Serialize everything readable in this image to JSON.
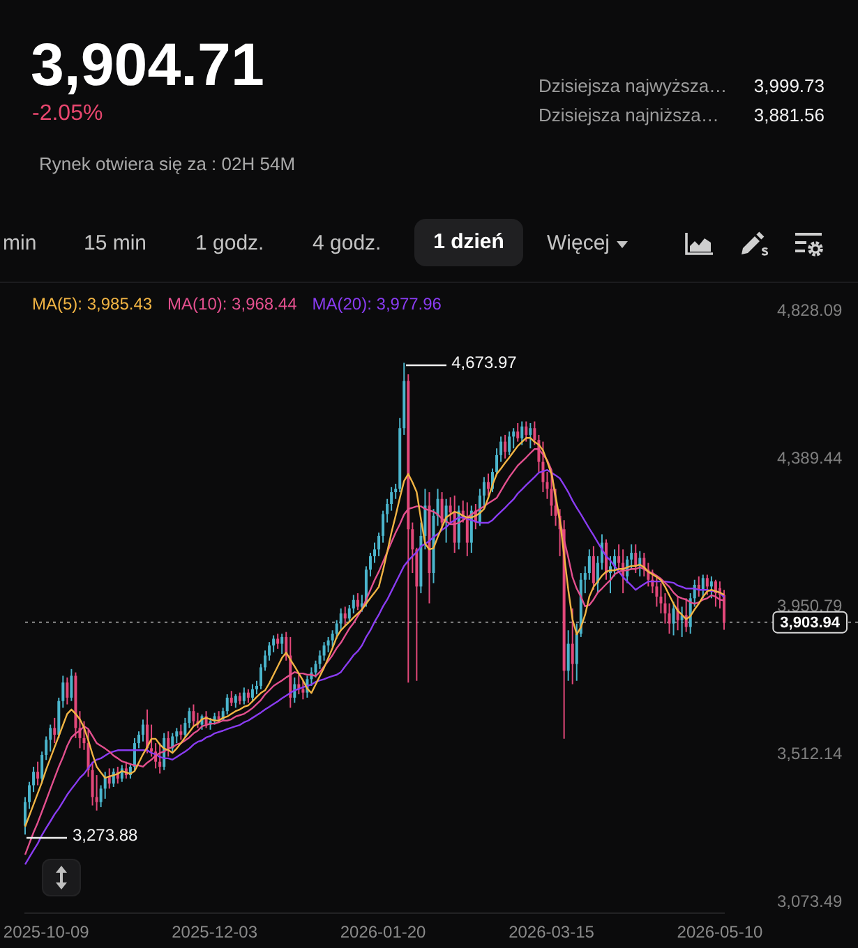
{
  "chart_data": {
    "type": "candlestick",
    "title": "3,904.71",
    "subtitle": "-2.05%",
    "categories": [
      null,
      null,
      null,
      null,
      null,
      "2025-10-09",
      null,
      null,
      null,
      null,
      null,
      null,
      null,
      null,
      null,
      null,
      null,
      null,
      null,
      null,
      null,
      null,
      null,
      null,
      null,
      null,
      null,
      null,
      null,
      null,
      null,
      null,
      null,
      null,
      null,
      null,
      null,
      null,
      null,
      null,
      null,
      null,
      null,
      null,
      null,
      "2025-12-03",
      null,
      null,
      null,
      null,
      null,
      null,
      null,
      null,
      null,
      null,
      null,
      null,
      null,
      null,
      null,
      null,
      null,
      null,
      null,
      null,
      null,
      null,
      null,
      null,
      null,
      null,
      null,
      null,
      null,
      null,
      null,
      null,
      null,
      null,
      null,
      null,
      null,
      null,
      null,
      "2026-01-20",
      null,
      null,
      null,
      null,
      null,
      null,
      null,
      null,
      null,
      null,
      null,
      null,
      null,
      null,
      null,
      null,
      null,
      null,
      null,
      null,
      null,
      null,
      null,
      null,
      null,
      null,
      null,
      null,
      null,
      null,
      null,
      null,
      null,
      null,
      null,
      null,
      null,
      null,
      null,
      "2026-03-15",
      null,
      null,
      null,
      null,
      null,
      null,
      null,
      null,
      null,
      null,
      null,
      null,
      null,
      null,
      null,
      null,
      null,
      null,
      null,
      null,
      null,
      null,
      null,
      null,
      null,
      null,
      null,
      null,
      null,
      null,
      null,
      null,
      null,
      null,
      null,
      null,
      null,
      null,
      null,
      "2026-05-10",
      null
    ],
    "ohlc": [
      [
        3300,
        3385,
        3273.88,
        3370
      ],
      [
        3370,
        3430,
        3350,
        3420
      ],
      [
        3420,
        3475,
        3400,
        3460
      ],
      [
        3460,
        3490,
        3420,
        3440
      ],
      [
        3440,
        3520,
        3425,
        3510
      ],
      [
        3510,
        3565,
        3495,
        3555
      ],
      [
        3555,
        3600,
        3520,
        3590
      ],
      [
        3590,
        3620,
        3545,
        3570
      ],
      [
        3570,
        3680,
        3560,
        3670
      ],
      [
        3670,
        3745,
        3650,
        3725
      ],
      [
        3725,
        3740,
        3660,
        3680
      ],
      [
        3680,
        3765,
        3670,
        3745
      ],
      [
        3745,
        3755,
        3560,
        3590
      ],
      [
        3590,
        3640,
        3530,
        3560
      ],
      [
        3560,
        3610,
        3525,
        3545
      ],
      [
        3545,
        3585,
        3445,
        3465
      ],
      [
        3465,
        3490,
        3360,
        3385
      ],
      [
        3385,
        3450,
        3345,
        3370
      ],
      [
        3370,
        3420,
        3355,
        3410
      ],
      [
        3410,
        3460,
        3380,
        3445
      ],
      [
        3445,
        3470,
        3410,
        3425
      ],
      [
        3425,
        3470,
        3415,
        3460
      ],
      [
        3460,
        3475,
        3425,
        3440
      ],
      [
        3440,
        3480,
        3430,
        3470
      ],
      [
        3470,
        3490,
        3440,
        3450
      ],
      [
        3450,
        3485,
        3440,
        3475
      ],
      [
        3475,
        3560,
        3460,
        3545
      ],
      [
        3545,
        3580,
        3530,
        3570
      ],
      [
        3570,
        3615,
        3550,
        3600
      ],
      [
        3600,
        3645,
        3515,
        3530
      ],
      [
        3530,
        3600,
        3505,
        3520
      ],
      [
        3520,
        3545,
        3470,
        3490
      ],
      [
        3490,
        3545,
        3455,
        3475
      ],
      [
        3475,
        3575,
        3465,
        3560
      ],
      [
        3560,
        3580,
        3505,
        3530
      ],
      [
        3530,
        3575,
        3520,
        3565
      ],
      [
        3565,
        3590,
        3545,
        3580
      ],
      [
        3580,
        3600,
        3555,
        3570
      ],
      [
        3570,
        3620,
        3560,
        3605
      ],
      [
        3605,
        3650,
        3590,
        3640
      ],
      [
        3640,
        3660,
        3595,
        3610
      ],
      [
        3610,
        3635,
        3590,
        3600
      ],
      [
        3600,
        3630,
        3585,
        3625
      ],
      [
        3625,
        3640,
        3590,
        3600
      ],
      [
        3600,
        3620,
        3585,
        3610
      ],
      [
        3610,
        3635,
        3600,
        3625
      ],
      [
        3625,
        3640,
        3605,
        3615
      ],
      [
        3615,
        3650,
        3610,
        3640
      ],
      [
        3640,
        3690,
        3630,
        3680
      ],
      [
        3680,
        3700,
        3655,
        3665
      ],
      [
        3665,
        3690,
        3650,
        3685
      ],
      [
        3685,
        3695,
        3660,
        3670
      ],
      [
        3670,
        3710,
        3660,
        3695
      ],
      [
        3695,
        3705,
        3665,
        3680
      ],
      [
        3680,
        3720,
        3670,
        3705
      ],
      [
        3705,
        3730,
        3690,
        3715
      ],
      [
        3715,
        3780,
        3705,
        3770
      ],
      [
        3770,
        3820,
        3760,
        3805
      ],
      [
        3805,
        3845,
        3790,
        3835
      ],
      [
        3835,
        3865,
        3815,
        3855
      ],
      [
        3855,
        3870,
        3825,
        3840
      ],
      [
        3840,
        3870,
        3810,
        3860
      ],
      [
        3860,
        3875,
        3790,
        3805
      ],
      [
        3805,
        3860,
        3650,
        3680
      ],
      [
        3680,
        3740,
        3665,
        3720
      ],
      [
        3720,
        3750,
        3690,
        3705
      ],
      [
        3705,
        3730,
        3675,
        3695
      ],
      [
        3695,
        3745,
        3680,
        3735
      ],
      [
        3735,
        3770,
        3715,
        3755
      ],
      [
        3755,
        3790,
        3740,
        3780
      ],
      [
        3780,
        3820,
        3765,
        3805
      ],
      [
        3805,
        3845,
        3790,
        3835
      ],
      [
        3835,
        3860,
        3815,
        3850
      ],
      [
        3850,
        3880,
        3830,
        3870
      ],
      [
        3870,
        3910,
        3855,
        3900
      ],
      [
        3900,
        3945,
        3880,
        3930
      ],
      [
        3930,
        3950,
        3895,
        3915
      ],
      [
        3915,
        3955,
        3905,
        3945
      ],
      [
        3945,
        3985,
        3930,
        3970
      ],
      [
        3970,
        3990,
        3940,
        3950
      ],
      [
        3950,
        3985,
        3935,
        3960
      ],
      [
        3960,
        4070,
        3950,
        4060
      ],
      [
        4060,
        4110,
        4040,
        4100
      ],
      [
        4100,
        4140,
        4080,
        4120
      ],
      [
        4120,
        4170,
        4100,
        4160
      ],
      [
        4160,
        4235,
        4140,
        4225
      ],
      [
        4225,
        4270,
        4200,
        4255
      ],
      [
        4255,
        4305,
        4235,
        4290
      ],
      [
        4290,
        4315,
        4270,
        4300
      ],
      [
        4300,
        4510,
        4290,
        4480
      ],
      [
        4480,
        4673.97,
        4460,
        4620
      ],
      [
        4620,
        4640,
        3725,
        4180
      ],
      [
        4180,
        4200,
        4050,
        4120
      ],
      [
        4120,
        4125,
        3730,
        4010
      ],
      [
        4010,
        4200,
        3990,
        4160
      ],
      [
        4160,
        4300,
        4120,
        4250
      ],
      [
        4250,
        4290,
        3960,
        4050
      ],
      [
        4050,
        4240,
        4020,
        4220
      ],
      [
        4220,
        4300,
        4190,
        4270
      ],
      [
        4270,
        4290,
        4180,
        4200
      ],
      [
        4200,
        4270,
        4140,
        4250
      ],
      [
        4250,
        4275,
        4200,
        4230
      ],
      [
        4230,
        4280,
        4110,
        4140
      ],
      [
        4140,
        4250,
        4120,
        4235
      ],
      [
        4235,
        4265,
        4200,
        4215
      ],
      [
        4215,
        4260,
        4100,
        4140
      ],
      [
        4140,
        4250,
        4110,
        4235
      ],
      [
        4235,
        4255,
        4180,
        4200
      ],
      [
        4200,
        4300,
        4190,
        4280
      ],
      [
        4280,
        4335,
        4240,
        4320
      ],
      [
        4320,
        4345,
        4280,
        4300
      ],
      [
        4300,
        4360,
        4290,
        4350
      ],
      [
        4350,
        4420,
        4340,
        4400
      ],
      [
        4400,
        4455,
        4380,
        4440
      ],
      [
        4440,
        4460,
        4390,
        4410
      ],
      [
        4410,
        4470,
        4400,
        4455
      ],
      [
        4455,
        4480,
        4420,
        4470
      ],
      [
        4470,
        4495,
        4440,
        4450
      ],
      [
        4450,
        4500,
        4430,
        4485
      ],
      [
        4485,
        4500,
        4440,
        4460
      ],
      [
        4460,
        4495,
        4420,
        4480
      ],
      [
        4480,
        4500,
        4430,
        4445
      ],
      [
        4445,
        4460,
        4350,
        4380
      ],
      [
        4380,
        4440,
        4290,
        4320
      ],
      [
        4320,
        4350,
        4270,
        4300
      ],
      [
        4300,
        4345,
        4220,
        4250
      ],
      [
        4250,
        4300,
        4190,
        4220
      ],
      [
        4220,
        4240,
        4100,
        4180
      ],
      [
        4180,
        4207,
        3558,
        3760
      ],
      [
        3760,
        3880,
        3730,
        3840
      ],
      [
        3840,
        3945,
        3720,
        3780
      ],
      [
        3780,
        3900,
        3730,
        3870
      ],
      [
        3870,
        4050,
        3860,
        4030
      ],
      [
        4030,
        4070,
        3990,
        4050
      ],
      [
        4050,
        4120,
        4030,
        4100
      ],
      [
        4100,
        4130,
        4000,
        4020
      ],
      [
        4020,
        4100,
        3990,
        4080
      ],
      [
        4080,
        4165,
        4060,
        4140
      ],
      [
        4140,
        4150,
        4030,
        4050
      ],
      [
        4050,
        4100,
        3990,
        4070
      ],
      [
        4070,
        4120,
        4040,
        4100
      ],
      [
        4100,
        4135,
        4060,
        4080
      ],
      [
        4080,
        4120,
        3990,
        4040
      ],
      [
        4040,
        4100,
        4020,
        4090
      ],
      [
        4090,
        4135,
        4060,
        4110
      ],
      [
        4110,
        4135,
        4050,
        4070
      ],
      [
        4070,
        4115,
        4040,
        4095
      ],
      [
        4095,
        4110,
        4040,
        4060
      ],
      [
        4060,
        4080,
        4010,
        4030
      ],
      [
        4030,
        4060,
        3990,
        4010
      ],
      [
        4010,
        4040,
        3950,
        3980
      ],
      [
        3980,
        4020,
        3930,
        3960
      ],
      [
        3960,
        3990,
        3900,
        3930
      ],
      [
        3930,
        3960,
        3870,
        3900
      ],
      [
        3900,
        3965,
        3865,
        3945
      ],
      [
        3945,
        3980,
        3880,
        3910
      ],
      [
        3910,
        3950,
        3860,
        3925
      ],
      [
        3925,
        3975,
        3875,
        3890
      ],
      [
        3890,
        3990,
        3870,
        3975
      ],
      [
        3975,
        4030,
        3950,
        4015
      ],
      [
        4015,
        4040,
        3980,
        4000
      ],
      [
        4000,
        4045,
        3975,
        4035
      ],
      [
        4035,
        4045,
        3985,
        4010
      ],
      [
        4010,
        4040,
        3975,
        4025
      ],
      [
        4025,
        4030,
        3950,
        3990
      ],
      [
        4005,
        4025,
        3945,
        3985
      ],
      [
        3985,
        3999.73,
        3881.56,
        3903.94
      ]
    ],
    "colors": [
      "#4bb5cc",
      "#4bb5cc",
      "#4bb5cc",
      "#e3487a",
      "#4bb5cc",
      "#4bb5cc",
      "#4bb5cc",
      "#e3487a",
      "#4bb5cc",
      "#4bb5cc",
      "#e3487a",
      "#4bb5cc",
      "#e3487a",
      "#e3487a",
      "#e3487a",
      "#e3487a",
      "#e3487a",
      "#e3487a",
      "#4bb5cc",
      "#4bb5cc",
      "#e3487a",
      "#4bb5cc",
      "#e3487a",
      "#4bb5cc",
      "#e3487a",
      "#4bb5cc",
      "#4bb5cc",
      "#4bb5cc",
      "#4bb5cc",
      "#e3487a",
      "#e3487a",
      "#e3487a",
      "#e3487a",
      "#4bb5cc",
      "#e3487a",
      "#4bb5cc",
      "#4bb5cc",
      "#e3487a",
      "#4bb5cc",
      "#4bb5cc",
      "#e3487a",
      "#e3487a",
      "#4bb5cc",
      "#e3487a",
      "#4bb5cc",
      "#4bb5cc",
      "#e3487a",
      "#4bb5cc",
      "#4bb5cc",
      "#e3487a",
      "#4bb5cc",
      "#e3487a",
      "#4bb5cc",
      "#e3487a",
      "#4bb5cc",
      "#4bb5cc",
      "#4bb5cc",
      "#4bb5cc",
      "#4bb5cc",
      "#4bb5cc",
      "#e3487a",
      "#4bb5cc",
      "#e3487a",
      "#e3487a",
      "#4bb5cc",
      "#e3487a",
      "#e3487a",
      "#4bb5cc",
      "#4bb5cc",
      "#4bb5cc",
      "#4bb5cc",
      "#4bb5cc",
      "#4bb5cc",
      "#4bb5cc",
      "#4bb5cc",
      "#4bb5cc",
      "#e3487a",
      "#4bb5cc",
      "#4bb5cc",
      "#e3487a",
      "#4bb5cc",
      "#4bb5cc",
      "#4bb5cc",
      "#4bb5cc",
      "#4bb5cc",
      "#4bb5cc",
      "#4bb5cc",
      "#4bb5cc",
      "#4bb5cc",
      "#4bb5cc",
      "#4bb5cc",
      "#e3487a",
      "#e3487a",
      "#e3487a",
      "#4bb5cc",
      "#4bb5cc",
      "#e3487a",
      "#4bb5cc",
      "#4bb5cc",
      "#e3487a",
      "#4bb5cc",
      "#e3487a",
      "#e3487a",
      "#4bb5cc",
      "#e3487a",
      "#e3487a",
      "#4bb5cc",
      "#e3487a",
      "#4bb5cc",
      "#4bb5cc",
      "#e3487a",
      "#4bb5cc",
      "#4bb5cc",
      "#4bb5cc",
      "#e3487a",
      "#4bb5cc",
      "#4bb5cc",
      "#e3487a",
      "#4bb5cc",
      "#e3487a",
      "#4bb5cc",
      "#e3487a",
      "#e3487a",
      "#e3487a",
      "#e3487a",
      "#e3487a",
      "#e3487a",
      "#e3487a",
      "#e3487a",
      "#4bb5cc",
      "#e3487a",
      "#4bb5cc",
      "#4bb5cc",
      "#4bb5cc",
      "#4bb5cc",
      "#e3487a",
      "#4bb5cc",
      "#4bb5cc",
      "#e3487a",
      "#4bb5cc",
      "#4bb5cc",
      "#e3487a",
      "#e3487a",
      "#4bb5cc",
      "#4bb5cc",
      "#e3487a",
      "#4bb5cc",
      "#e3487a",
      "#e3487a",
      "#e3487a",
      "#e3487a",
      "#e3487a",
      "#e3487a",
      "#e3487a",
      "#4bb5cc",
      "#e3487a",
      "#4bb5cc",
      "#e3487a",
      "#4bb5cc",
      "#4bb5cc",
      "#e3487a",
      "#4bb5cc",
      "#e3487a",
      "#4bb5cc",
      "#e3487a",
      "#e3487a",
      "#e3487a"
    ],
    "series": [
      {
        "type": "line",
        "name": "MA(5): 3,985.43",
        "color": "#f2b544",
        "values": [
          3297,
          3330,
          3363,
          3396,
          3429,
          3467,
          3500,
          3533,
          3566,
          3599,
          3632,
          3645,
          3632,
          3616,
          3591,
          3554,
          3512,
          3475,
          3458,
          3442,
          3446,
          3450,
          3454,
          3462,
          3458,
          3454,
          3462,
          3487,
          3512,
          3533,
          3558,
          3558,
          3541,
          3529,
          3525,
          3516,
          3529,
          3545,
          3562,
          3578,
          3595,
          3603,
          3616,
          3620,
          3616,
          3612,
          3612,
          3620,
          3624,
          3632,
          3640,
          3645,
          3653,
          3657,
          3669,
          3682,
          3694,
          3702,
          3723,
          3748,
          3773,
          3798,
          3814,
          3793,
          3773,
          3752,
          3731,
          3707,
          3694,
          3719,
          3744,
          3769,
          3798,
          3827,
          3860,
          3880,
          3893,
          3905,
          3918,
          3930,
          3942,
          3959,
          3976,
          3992,
          4009,
          4058,
          4112,
          4170,
          4220,
          4273,
          4323,
          4344,
          4319,
          4290,
          4211,
          4137,
          4120,
          4124,
          4157,
          4186,
          4215,
          4224,
          4232,
          4228,
          4220,
          4215,
          4215,
          4220,
          4228,
          4240,
          4273,
          4311,
          4344,
          4360,
          4377,
          4393,
          4410,
          4427,
          4439,
          4451,
          4451,
          4439,
          4431,
          4414,
          4381,
          4344,
          4278,
          4207,
          4104,
          4000,
          3913,
          3868,
          3889,
          3926,
          3980,
          4009,
          4025,
          4042,
          4054,
          4058,
          4058,
          4062,
          4062,
          4067,
          4071,
          4071,
          4075,
          4067,
          4054,
          4046,
          4038,
          4029,
          4009,
          3984,
          3959,
          3938,
          3926,
          3913,
          3922,
          3942,
          3959,
          3980,
          3996,
          4000,
          3996,
          3992,
          3985.43
        ]
      },
      {
        "type": "line",
        "name": "MA(10): 3,968.44",
        "color": "#e4508f",
        "values": [
          3214,
          3247,
          3280,
          3309,
          3342,
          3375,
          3409,
          3442,
          3475,
          3504,
          3537,
          3562,
          3574,
          3582,
          3595,
          3587,
          3566,
          3545,
          3537,
          3529,
          3520,
          3508,
          3500,
          3491,
          3487,
          3483,
          3479,
          3479,
          3475,
          3487,
          3496,
          3508,
          3516,
          3520,
          3529,
          3533,
          3541,
          3545,
          3553,
          3562,
          3574,
          3582,
          3595,
          3599,
          3603,
          3603,
          3607,
          3612,
          3612,
          3616,
          3624,
          3628,
          3632,
          3640,
          3649,
          3661,
          3673,
          3690,
          3702,
          3715,
          3723,
          3731,
          3740,
          3748,
          3756,
          3752,
          3752,
          3748,
          3748,
          3744,
          3756,
          3773,
          3789,
          3806,
          3827,
          3843,
          3864,
          3885,
          3901,
          3922,
          3942,
          3971,
          4000,
          4029,
          4054,
          4083,
          4112,
          4141,
          4170,
          4195,
          4224,
          4240,
          4244,
          4248,
          4248,
          4240,
          4236,
          4232,
          4224,
          4211,
          4203,
          4195,
          4195,
          4199,
          4207,
          4215,
          4224,
          4232,
          4240,
          4248,
          4257,
          4265,
          4273,
          4294,
          4315,
          4335,
          4352,
          4369,
          4381,
          4393,
          4406,
          4418,
          4418,
          4402,
          4385,
          4356,
          4265,
          4207,
          4149,
          4096,
          4038,
          4004,
          3980,
          3951,
          3955,
          3971,
          3992,
          4004,
          4017,
          4029,
          4046,
          4054,
          4058,
          4058,
          4062,
          4062,
          4067,
          4062,
          4054,
          4050,
          4042,
          4033,
          4021,
          4009,
          3992,
          3980,
          3975,
          3971,
          3963,
          3959,
          3963,
          3971,
          3975,
          3984,
          3980,
          3971,
          3968.44
        ]
      },
      {
        "type": "line",
        "name": "MA(20): 3,977.96",
        "color": "#8a3cf2",
        "values": [
          3185,
          3206,
          3227,
          3247,
          3272,
          3293,
          3313,
          3334,
          3351,
          3371,
          3392,
          3409,
          3425,
          3442,
          3454,
          3471,
          3487,
          3496,
          3500,
          3508,
          3516,
          3520,
          3524,
          3524,
          3524,
          3524,
          3524,
          3524,
          3524,
          3524,
          3516,
          3512,
          3504,
          3500,
          3500,
          3496,
          3504,
          3512,
          3520,
          3529,
          3541,
          3549,
          3553,
          3562,
          3566,
          3574,
          3578,
          3582,
          3587,
          3591,
          3595,
          3599,
          3607,
          3612,
          3620,
          3628,
          3636,
          3645,
          3653,
          3661,
          3669,
          3678,
          3686,
          3694,
          3702,
          3706,
          3711,
          3715,
          3719,
          3727,
          3731,
          3735,
          3740,
          3744,
          3748,
          3756,
          3773,
          3789,
          3806,
          3818,
          3835,
          3860,
          3880,
          3905,
          3926,
          3951,
          3971,
          3996,
          4021,
          4046,
          4071,
          4087,
          4100,
          4112,
          4129,
          4137,
          4145,
          4157,
          4166,
          4178,
          4186,
          4199,
          4207,
          4215,
          4215,
          4211,
          4207,
          4203,
          4199,
          4199,
          4199,
          4207,
          4220,
          4232,
          4244,
          4257,
          4269,
          4286,
          4298,
          4311,
          4323,
          4335,
          4348,
          4352,
          4356,
          4348,
          4340,
          4331,
          4311,
          4290,
          4265,
          4244,
          4224,
          4203,
          4182,
          4162,
          4141,
          4120,
          4100,
          4087,
          4071,
          4054,
          4038,
          4025,
          4013,
          4000,
          4009,
          4017,
          4025,
          4025,
          4025,
          4025,
          4025,
          4023,
          4021,
          4013,
          4009,
          4004,
          4004,
          4004,
          4000,
          4000,
          4000,
          3996,
          3996,
          3992,
          3977.96
        ]
      }
    ],
    "ylim": [
      3040.4,
      4915
    ],
    "yticks": [
      {
        "value": 3073.49,
        "label": "3,073.49"
      },
      {
        "value": 3512.14,
        "label": "3,512.14"
      },
      {
        "value": 3950.79,
        "label": "3,950.79"
      },
      {
        "value": 4389.44,
        "label": "4,389.44"
      },
      {
        "value": 4828.09,
        "label": "4,828.09"
      }
    ],
    "ref_lines": [
      {
        "axis": "y",
        "value": 3903.94,
        "line_style": "dotted"
      }
    ],
    "annotations": [
      "Rynek otwiera się za : 02H 54M",
      "Dzisiejsza najwyższa…",
      "3,999.73",
      "Dzisiejsza najniższa…",
      "3,881.56",
      "min",
      "15 min",
      "1 godz.",
      "4 godz.",
      "1 dzień",
      "Więcej",
      "4,673.97",
      "3,273.88",
      {
        "text": "3,903.94",
        "y": 3903.94
      }
    ],
    "legend": "top left"
  }
}
